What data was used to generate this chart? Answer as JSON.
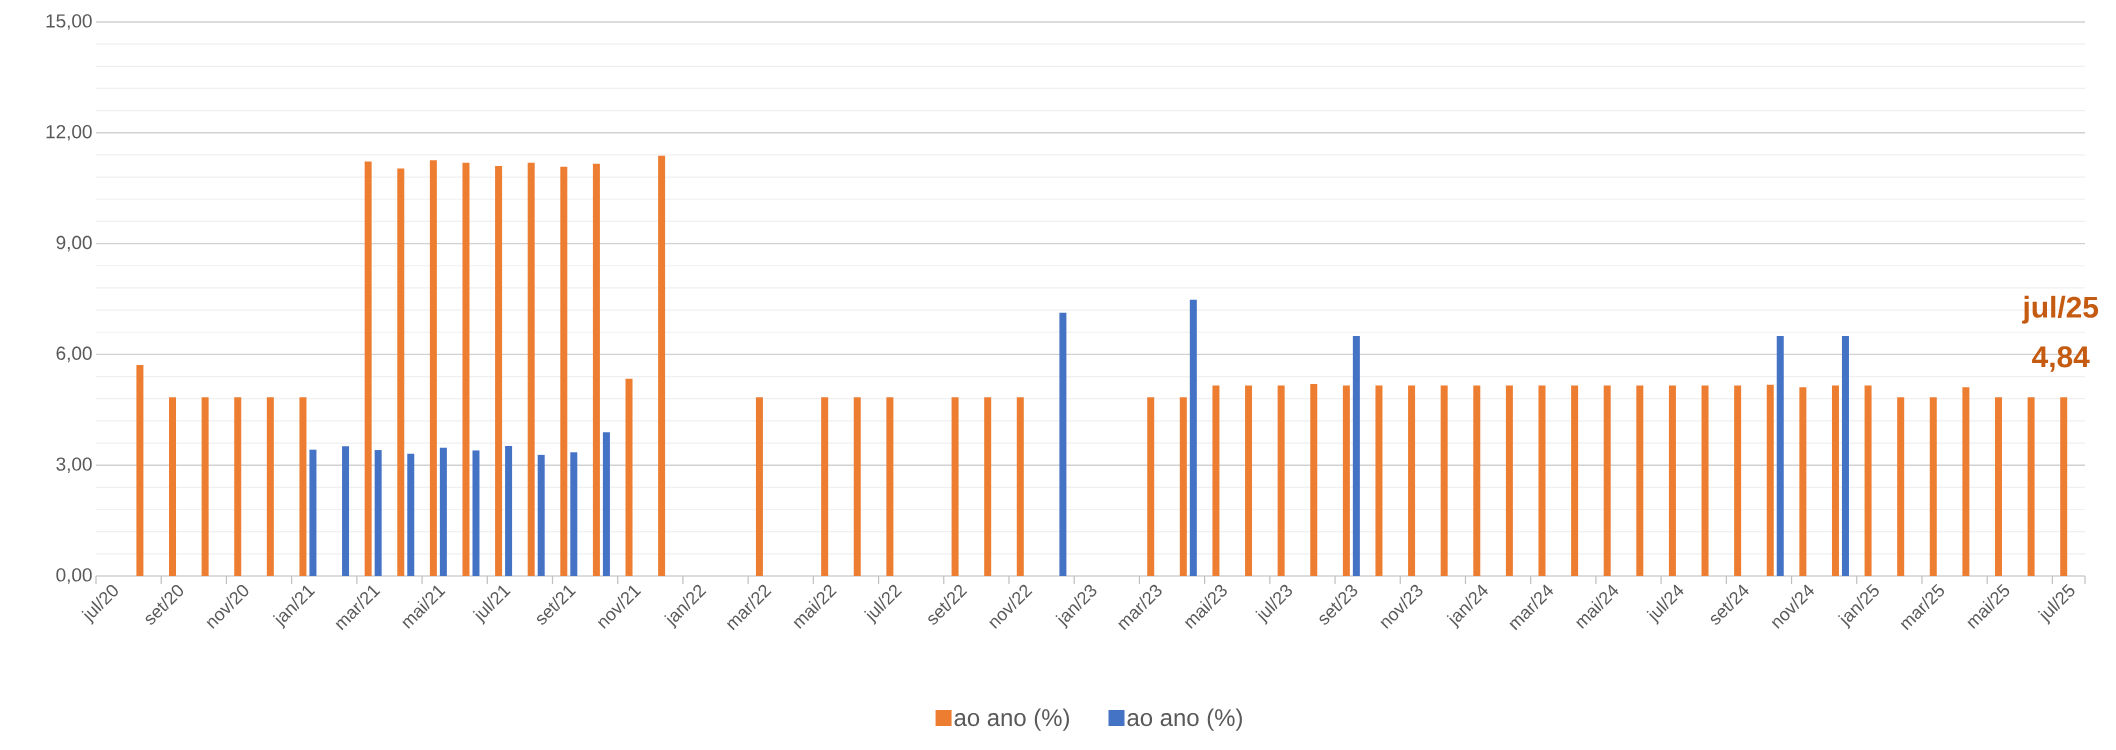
{
  "chart_data": {
    "type": "bar",
    "categories": [
      "jul/20",
      null,
      "set/20",
      null,
      "nov/20",
      null,
      "jan/21",
      null,
      "mar/21",
      null,
      "mai/21",
      null,
      "jul/21",
      null,
      "set/21",
      null,
      "nov/21",
      null,
      "jan/22",
      null,
      "mar/22",
      null,
      "mai/22",
      null,
      "jul/22",
      null,
      "set/22",
      null,
      "nov/22",
      null,
      "jan/23",
      null,
      "mar/23",
      null,
      "mai/23",
      null,
      "jul/23",
      null,
      "set/23",
      null,
      "nov/23",
      null,
      "jan/24",
      null,
      "mar/24",
      null,
      "mai/24",
      null,
      "jul/24",
      null,
      "set/24",
      null,
      "nov/24",
      null,
      "jan/25",
      null,
      "mar/25",
      null,
      "mai/25",
      null,
      "jul/25"
    ],
    "series": [
      {
        "name": "ao ano (%)",
        "color": "#ed7d31",
        "values": [
          null,
          5.71,
          4.84,
          4.84,
          4.84,
          4.84,
          4.84,
          null,
          11.22,
          11.03,
          11.26,
          11.19,
          11.1,
          11.19,
          11.08,
          11.16,
          5.34,
          11.38,
          null,
          null,
          4.84,
          null,
          4.84,
          4.84,
          4.84,
          null,
          4.84,
          4.84,
          4.84,
          null,
          null,
          null,
          4.84,
          4.84,
          5.16,
          5.16,
          5.16,
          5.2,
          5.16,
          5.16,
          5.16,
          5.16,
          5.16,
          5.16,
          5.16,
          5.16,
          5.16,
          5.16,
          5.16,
          5.16,
          5.16,
          5.18,
          5.11,
          5.16,
          5.16,
          4.84,
          4.84,
          5.11,
          4.84,
          4.84,
          4.84
        ]
      },
      {
        "name": "ao ano (%)",
        "color": "#4472c4",
        "values": [
          null,
          null,
          null,
          null,
          null,
          null,
          3.42,
          3.51,
          3.41,
          3.31,
          3.47,
          3.4,
          3.52,
          3.28,
          3.35,
          3.89,
          null,
          null,
          null,
          null,
          null,
          null,
          null,
          null,
          null,
          null,
          null,
          null,
          null,
          7.13,
          null,
          null,
          null,
          7.48,
          null,
          null,
          null,
          null,
          6.5,
          null,
          null,
          null,
          null,
          null,
          null,
          null,
          null,
          null,
          null,
          null,
          null,
          6.5,
          null,
          6.5,
          null,
          null,
          null,
          null,
          null,
          null,
          null
        ]
      }
    ],
    "ylim": [
      0,
      15
    ],
    "yticks": [
      {
        "value": 0,
        "label": "0,00"
      },
      {
        "value": 3,
        "label": "3,00"
      },
      {
        "value": 6,
        "label": "6,00"
      },
      {
        "value": 9,
        "label": "9,00"
      },
      {
        "value": 12,
        "label": "12,00"
      },
      {
        "value": 15,
        "label": "15,00"
      }
    ],
    "grid": "y",
    "legend": "bottom",
    "annotations": [
      {
        "text": "jul/25",
        "x": "jul/25",
        "y": 4.84
      },
      {
        "text": "4,84",
        "x": "jul/25",
        "y": 4.84
      }
    ]
  }
}
